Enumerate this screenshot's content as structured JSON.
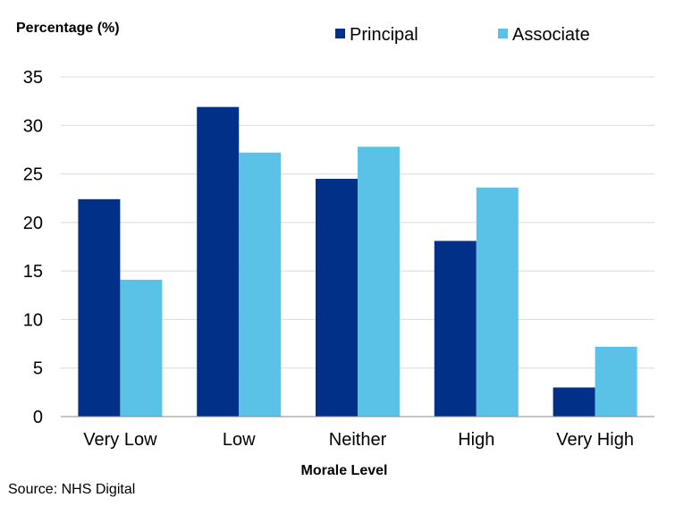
{
  "chart_data": {
    "type": "bar",
    "title": "",
    "ylabel": "Percentage (%)",
    "xlabel": "Morale Level",
    "source": "Source: NHS Digital",
    "categories": [
      "Very Low",
      "Low",
      "Neither",
      "High",
      "Very High"
    ],
    "series": [
      {
        "name": "Principal",
        "values": [
          22.4,
          31.9,
          24.5,
          18.1,
          3.0
        ],
        "color": "#003087"
      },
      {
        "name": "Associate",
        "values": [
          14.1,
          27.2,
          27.8,
          23.6,
          7.2
        ],
        "color": "#5bc2e7"
      }
    ],
    "ylim": [
      0,
      35
    ],
    "yticks": [
      0,
      5,
      10,
      15,
      20,
      25,
      30,
      35
    ],
    "grid": true,
    "legend_position": "top"
  }
}
